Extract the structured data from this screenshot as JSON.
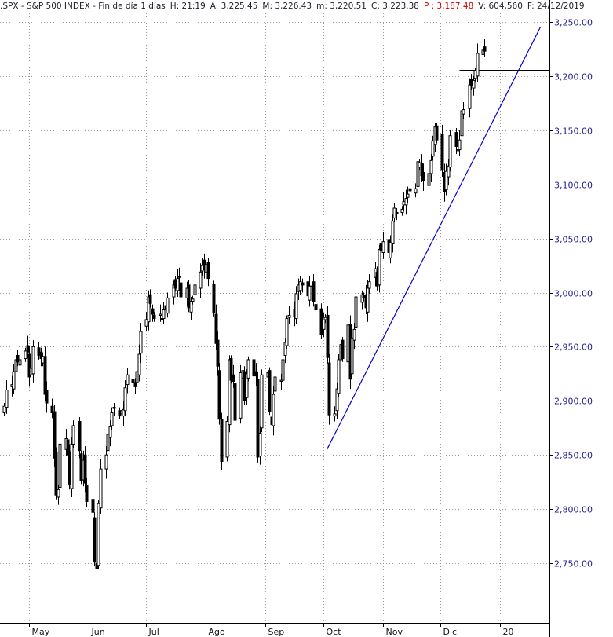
{
  "header": {
    "symbol": ".SPX",
    "name": "S&P 500 INDEX",
    "period": "Fin de día 1 días",
    "time": "H: 21:19",
    "open": "A: 3,225.45",
    "high": "M: 3,226.43",
    "low": "m: 3,220.51",
    "close": "C: 3,223.38",
    "prev_close": "P : 3,187.48",
    "volume": "V: 604,560",
    "date": "F: 24/12/2019"
  },
  "colors": {
    "background": "#ffffff",
    "y_label": "#1e1e8c",
    "trendline": "#0000cc",
    "candle": "#000000",
    "grid": "#9a9a9a",
    "prev_close_text": "#d20000"
  },
  "chart_data": {
    "type": "candlestick",
    "title": ".SPX - S&P 500 INDEX",
    "ylabel": "",
    "xlabel": "",
    "ylim": [
      2720,
      3258
    ],
    "y_ticks": [
      "3,250.00",
      "3,200.00",
      "3,150.00",
      "3,100.00",
      "3,050.00",
      "3,000.00",
      "2,950.00",
      "2,900.00",
      "2,850.00",
      "2,800.00",
      "2,750.00"
    ],
    "y_tick_values": [
      3250,
      3200,
      3150,
      3100,
      3050,
      3000,
      2950,
      2900,
      2850,
      2800,
      2750
    ],
    "x_ticks": [
      "May",
      "Jun",
      "Jul",
      "Ago",
      "Sep",
      "Oct",
      "Nov",
      "Dic",
      "20"
    ],
    "x_tick_dates": [
      "2019-05-01",
      "2019-06-01",
      "2019-07-01",
      "2019-08-01",
      "2019-09-01",
      "2019-10-01",
      "2019-11-01",
      "2019-12-01",
      "2020-01-01"
    ],
    "x_range": [
      "2019-04-02",
      "2020-01-28"
    ],
    "grid": true,
    "closes": [
      2895,
      2910,
      2915,
      2927,
      2938,
      2936,
      2938,
      2946,
      2945,
      2922,
      2930,
      2950,
      2942,
      2939,
      2941,
      2906,
      2898,
      2889,
      2847,
      2813,
      2818,
      2860,
      2865,
      2850,
      2823,
      2860,
      2877,
      2854,
      2826,
      2845,
      2824,
      2807,
      2797,
      2751,
      2745,
      2805,
      2837,
      2850,
      2869,
      2876,
      2889,
      2893,
      2886,
      2891,
      2892,
      2912,
      2924,
      2917,
      2913,
      2927,
      2943,
      2964,
      2975,
      2996,
      2990,
      2980,
      2976,
      2980,
      2976,
      2984,
      2984,
      2995,
      3007,
      3004,
      3013,
      3014,
      2996,
      3004,
      2986,
      2992,
      2994,
      3007,
      3019,
      3025,
      3021,
      3026,
      3013,
      2981,
      2953,
      2932,
      2883,
      2844,
      2881,
      2938,
      2919,
      2918,
      2882,
      2926,
      2928,
      2900,
      2925,
      2938,
      2923,
      2923,
      2848,
      2870,
      2924,
      2926,
      2890,
      2878,
      2906,
      2922,
      2919,
      2938,
      2954,
      2976,
      2979,
      2978,
      2999,
      3007,
      3010,
      3007,
      2997,
      3006,
      3006,
      2992,
      2984,
      2961,
      2977,
      2977,
      2940,
      2887,
      2888,
      2911,
      2938,
      2952,
      2939,
      2970,
      2920,
      2958,
      2966,
      2996,
      2998,
      2995,
      2986,
      3004,
      3010,
      3022,
      3006,
      3040,
      3039,
      3047,
      3037,
      3046,
      3066,
      3078,
      3074,
      3077,
      3084,
      3087,
      3091,
      3094,
      3096,
      3121,
      3120,
      3108,
      3103,
      3110,
      3122,
      3140,
      3153,
      3141,
      3113,
      3093,
      3112,
      3117,
      3145,
      3135,
      3132,
      3141,
      3168,
      3169,
      3192,
      3191,
      3196,
      3205,
      3221,
      3224,
      3223
    ],
    "last_close": 3223.38,
    "annotations": [
      {
        "type": "trendline",
        "from": [
          "2019-10-03",
          2855
        ],
        "to": [
          "2020-01-22",
          3245
        ]
      },
      {
        "type": "horizontal_line",
        "from": "2019-12-11",
        "to": "2020-01-27",
        "value": 3206
      }
    ]
  }
}
